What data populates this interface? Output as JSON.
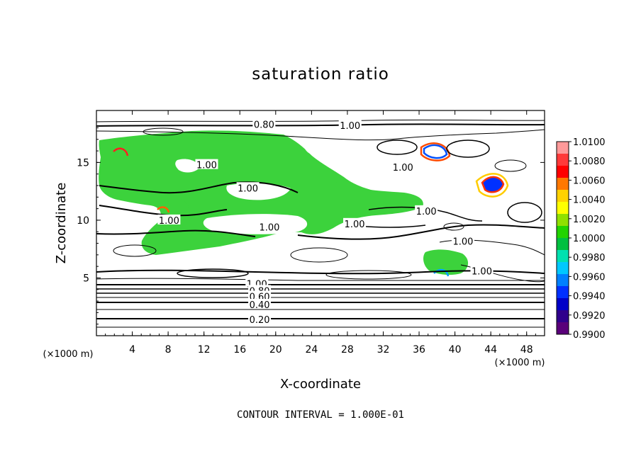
{
  "chart_data": {
    "type": "heatmap",
    "title": "saturation ratio",
    "xlabel": "X-coordinate",
    "ylabel": "Z-coordinate",
    "x_unit_left": "(×1000 m)",
    "x_unit_right": "(×1000 m)",
    "xlim": [
      0,
      50
    ],
    "ylim": [
      0,
      19.5
    ],
    "x_ticks": [
      4,
      8,
      12,
      16,
      20,
      24,
      28,
      32,
      36,
      40,
      44,
      48
    ],
    "y_ticks": [
      5,
      10,
      15
    ],
    "footer": "CONTOUR INTERVAL = 1.000E-01",
    "colorbar": {
      "ticks": [
        "1.0100",
        "1.0080",
        "1.0060",
        "1.0040",
        "1.0020",
        "1.0000",
        "0.9980",
        "0.9960",
        "0.9940",
        "0.9920",
        "0.9900"
      ],
      "colors": [
        "#ff9a9a",
        "#ff3a3a",
        "#ff0000",
        "#ff7800",
        "#ffd200",
        "#ffff00",
        "#90e000",
        "#22d400",
        "#00c040",
        "#00e0b0",
        "#00c8ff",
        "#0080ff",
        "#0030ff",
        "#0000c8",
        "#30008c",
        "#5a007a"
      ]
    },
    "contour_labels": [
      {
        "text": "0.80",
        "x": 18.7,
        "y": 18.3
      },
      {
        "text": "1.00",
        "x": 28.3,
        "y": 18.2
      },
      {
        "text": "1.00",
        "x": 12.3,
        "y": 14.8
      },
      {
        "text": "1.00",
        "x": 16.9,
        "y": 12.8
      },
      {
        "text": "1.00",
        "x": 34.2,
        "y": 14.6
      },
      {
        "text": "1.00",
        "x": 36.8,
        "y": 10.8
      },
      {
        "text": "1.00",
        "x": 28.8,
        "y": 9.7
      },
      {
        "text": "1.00",
        "x": 19.3,
        "y": 9.4
      },
      {
        "text": "1.00",
        "x": 8.1,
        "y": 10.0
      },
      {
        "text": "1.00",
        "x": 40.9,
        "y": 8.2
      },
      {
        "text": "1.00",
        "x": 43.0,
        "y": 5.6
      },
      {
        "text": "1.00",
        "x": 17.9,
        "y": 4.5
      },
      {
        "text": "0.80",
        "x": 18.2,
        "y": 3.9
      },
      {
        "text": "0.60",
        "x": 18.2,
        "y": 3.4
      },
      {
        "text": "0.40",
        "x": 18.2,
        "y": 2.7
      },
      {
        "text": "0.20",
        "x": 18.2,
        "y": 1.4
      }
    ]
  }
}
